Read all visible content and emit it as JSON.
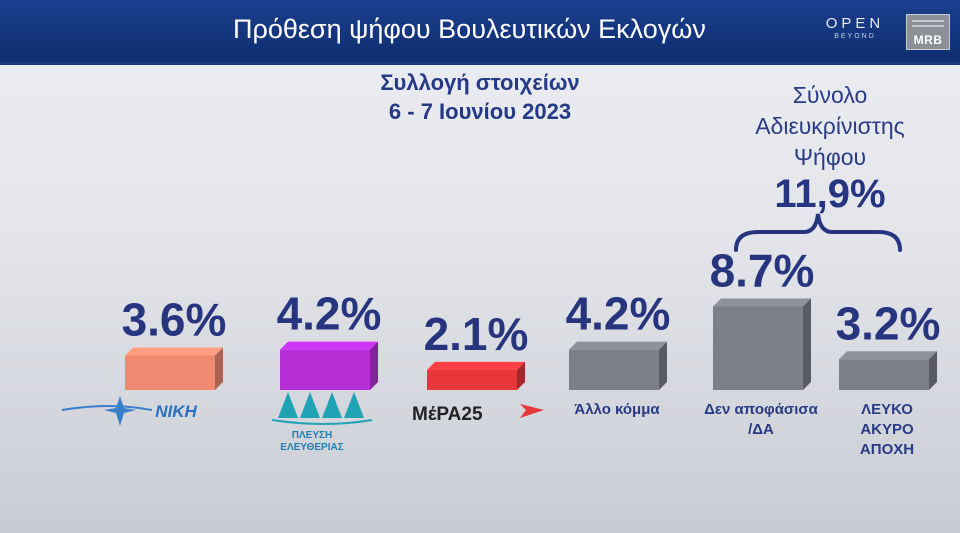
{
  "header": {
    "title": "Πρόθεση ψήφου Βουλευτικών Εκλογών",
    "brand_name": "OPEN",
    "brand_sub": "BEYOND",
    "mrb_logo": "MRB"
  },
  "subtitle": {
    "line1": "Συλλογή στοιχείων",
    "line2": "6 - 7 Ιουνίου 2023"
  },
  "annotation": {
    "label_lines": [
      "Σύνολο",
      "Αδιευκρίνιστης",
      "Ψήφου"
    ],
    "value": "11,9%"
  },
  "chart_data": {
    "type": "bar",
    "categories": [
      "ΝΙΚΗ",
      "ΠΛΕΥΣΗ ΕΛΕΥΘΕΡΙΑΣ",
      "ΜέΡΑ25",
      "Άλλο κόμμα",
      "Δεν αποφάσισα /ΔΑ",
      "ΛΕΥΚΟ ΑΚΥΡΟ ΑΠΟΧΗ"
    ],
    "values": [
      3.6,
      4.2,
      2.1,
      4.2,
      8.7,
      3.2
    ],
    "value_labels": [
      "3.6%",
      "4.2%",
      "2.1%",
      "4.2%",
      "8.7%",
      "3.2%"
    ],
    "category_label_lines": [
      [],
      [],
      [],
      [
        "Άλλο κόμμα"
      ],
      [
        "Δεν αποφάσισα",
        "/ΔΑ"
      ],
      [
        "ΛΕΥΚΟ",
        "ΑΚΥΡΟ",
        "ΑΠΟΧΗ"
      ]
    ],
    "logo_texts": [
      [
        "ΝΙΚΗ"
      ],
      [
        "ΠΛΕΥΣΗ",
        "ΕΛΕΥΘΕΡΙΑΣ"
      ],
      [
        "ΜέΡΑ25"
      ],
      [],
      [],
      []
    ],
    "colors": [
      "#ef8a70",
      "#b62fd6",
      "#e8373a",
      "#7c7f85",
      "#7c7f85",
      "#7c7f85"
    ],
    "unit": "%",
    "grid": false,
    "legend": "none"
  }
}
